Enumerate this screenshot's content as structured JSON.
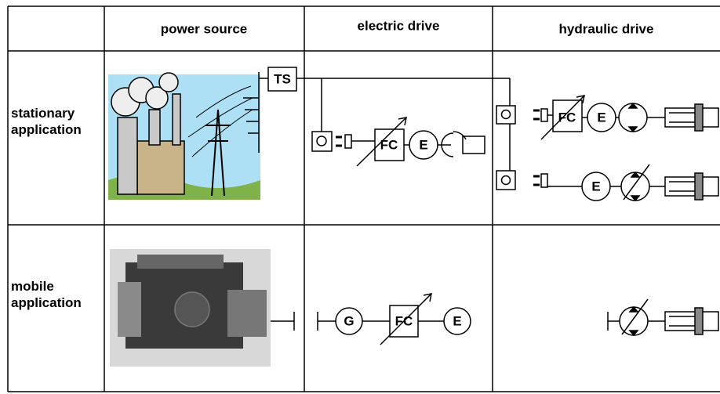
{
  "table": {
    "header": [
      "power source",
      "electric drive",
      "hydraulic drive"
    ],
    "rows": [
      {
        "label": "stationary application"
      },
      {
        "label": "mobile application"
      }
    ]
  },
  "symbols": [
    "TS",
    "FC",
    "E",
    "FC",
    "E",
    "E",
    "G",
    "FC",
    "E"
  ]
}
